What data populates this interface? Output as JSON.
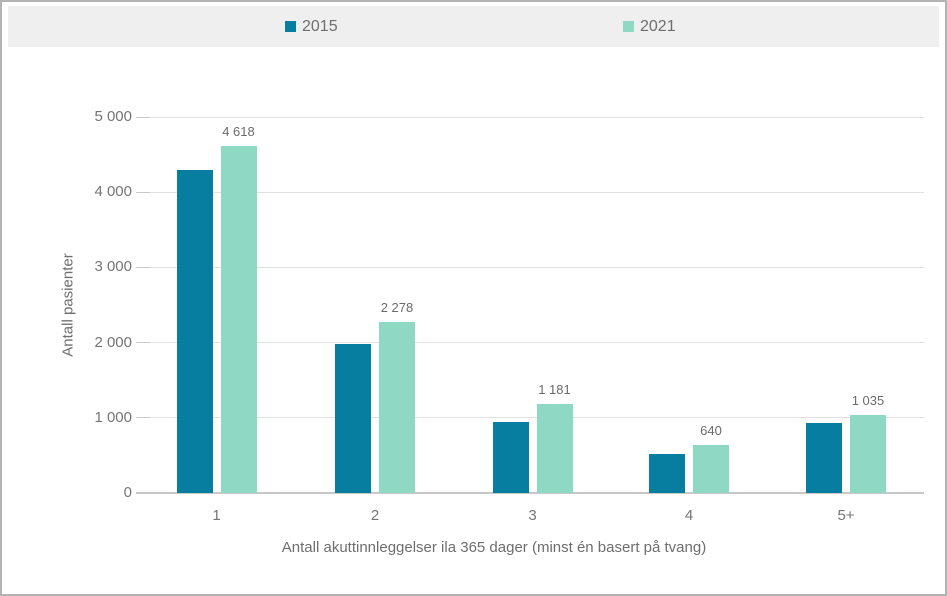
{
  "header": {
    "legend": [
      {
        "label": "2015",
        "color": "#077ea0"
      },
      {
        "label": "2021",
        "color": "#8fd8c4"
      }
    ]
  },
  "chart_data": {
    "type": "bar",
    "title": "",
    "categories": [
      "1",
      "2",
      "3",
      "4",
      "5+"
    ],
    "series": [
      {
        "name": "2015",
        "color": "#077ea0",
        "values": [
          4290,
          1980,
          950,
          520,
          930
        ],
        "value_labels_shown": false,
        "value_labels": [
          "",
          "",
          "",
          "",
          ""
        ]
      },
      {
        "name": "2021",
        "color": "#8fd8c4",
        "values": [
          4618,
          2278,
          1181,
          640,
          1035
        ],
        "value_labels_shown": true,
        "value_labels": [
          "4 618",
          "2 278",
          "1 181",
          "640",
          "1 035"
        ]
      }
    ],
    "xlabel": "Antall akuttinnleggelser ila 365 dager (minst én basert på tvang)",
    "ylabel": "Antall pasienter",
    "ylim": [
      0,
      5000
    ],
    "ytick_interval": 1000,
    "ytick_labels": [
      "0",
      "1 000",
      "2 000",
      "3 000",
      "4 000",
      "5 000"
    ],
    "grid": true,
    "legend_position": "top"
  },
  "colors": {
    "frame_border": "#b3b3b3",
    "legend_band_bg": "#efefef",
    "gridline": "#e1e1e1",
    "axis_line": "#c8c8c8",
    "tick_text": "#757575",
    "label_text": "#6b6b6b",
    "axis_title_text": "#6e6e6e"
  }
}
